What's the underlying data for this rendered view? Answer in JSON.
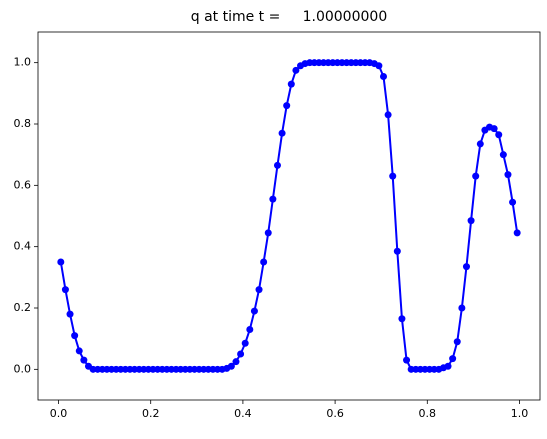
{
  "chart_data": {
    "type": "line",
    "title": "q at time t =     1.00000000",
    "x": [
      0.005,
      0.015,
      0.025,
      0.035,
      0.045,
      0.055,
      0.065,
      0.075,
      0.085,
      0.095,
      0.105,
      0.115,
      0.125,
      0.135,
      0.145,
      0.155,
      0.165,
      0.175,
      0.185,
      0.195,
      0.205,
      0.215,
      0.225,
      0.235,
      0.245,
      0.255,
      0.265,
      0.275,
      0.285,
      0.295,
      0.305,
      0.315,
      0.325,
      0.335,
      0.345,
      0.355,
      0.365,
      0.375,
      0.385,
      0.395,
      0.405,
      0.415,
      0.425,
      0.435,
      0.445,
      0.455,
      0.465,
      0.475,
      0.485,
      0.495,
      0.505,
      0.515,
      0.525,
      0.535,
      0.545,
      0.555,
      0.565,
      0.575,
      0.585,
      0.595,
      0.605,
      0.615,
      0.625,
      0.635,
      0.645,
      0.655,
      0.665,
      0.675,
      0.685,
      0.695,
      0.705,
      0.715,
      0.725,
      0.735,
      0.745,
      0.755,
      0.765,
      0.775,
      0.785,
      0.795,
      0.805,
      0.815,
      0.825,
      0.835,
      0.845,
      0.855,
      0.865,
      0.875,
      0.885,
      0.895,
      0.905,
      0.915,
      0.925,
      0.935,
      0.945,
      0.955,
      0.965,
      0.975,
      0.985,
      0.995
    ],
    "series": [
      {
        "color": "#0000ff",
        "values": [
          0.35,
          0.26,
          0.18,
          0.11,
          0.06,
          0.03,
          0.01,
          0,
          0,
          0,
          0,
          0,
          0,
          0,
          0,
          0,
          0,
          0,
          0,
          0,
          0,
          0,
          0,
          0,
          0,
          0,
          0,
          0,
          0,
          0,
          0,
          0,
          0,
          0,
          0,
          0,
          0.003,
          0.01,
          0.025,
          0.05,
          0.085,
          0.13,
          0.19,
          0.26,
          0.35,
          0.445,
          0.555,
          0.665,
          0.77,
          0.86,
          0.93,
          0.975,
          0.99,
          0.997,
          1,
          1,
          1,
          1,
          1,
          1,
          1,
          1,
          1,
          1,
          1,
          1,
          1,
          1,
          0.997,
          0.99,
          0.955,
          0.83,
          0.63,
          0.385,
          0.165,
          0.03,
          0,
          0,
          0,
          0,
          0,
          0,
          0,
          0.005,
          0.01,
          0.035,
          0.09,
          0.2,
          0.335,
          0.485,
          0.63,
          0.735,
          0.78,
          0.79,
          0.785,
          0.765,
          0.7,
          0.635,
          0.545,
          0.445
        ]
      }
    ],
    "xlim": [
      -0.0445,
      1.0445
    ],
    "ylim": [
      -0.1,
      1.1
    ],
    "xticks": [
      {
        "value": 0,
        "label": "0.0"
      },
      0.2,
      0.4,
      0.6,
      0.8,
      {
        "value": 1,
        "label": "1.0"
      }
    ],
    "yticks": [
      {
        "value": 0,
        "label": "0.0"
      },
      0.2,
      0.4,
      0.6,
      0.8,
      {
        "value": 1,
        "label": "1.0"
      }
    ]
  }
}
